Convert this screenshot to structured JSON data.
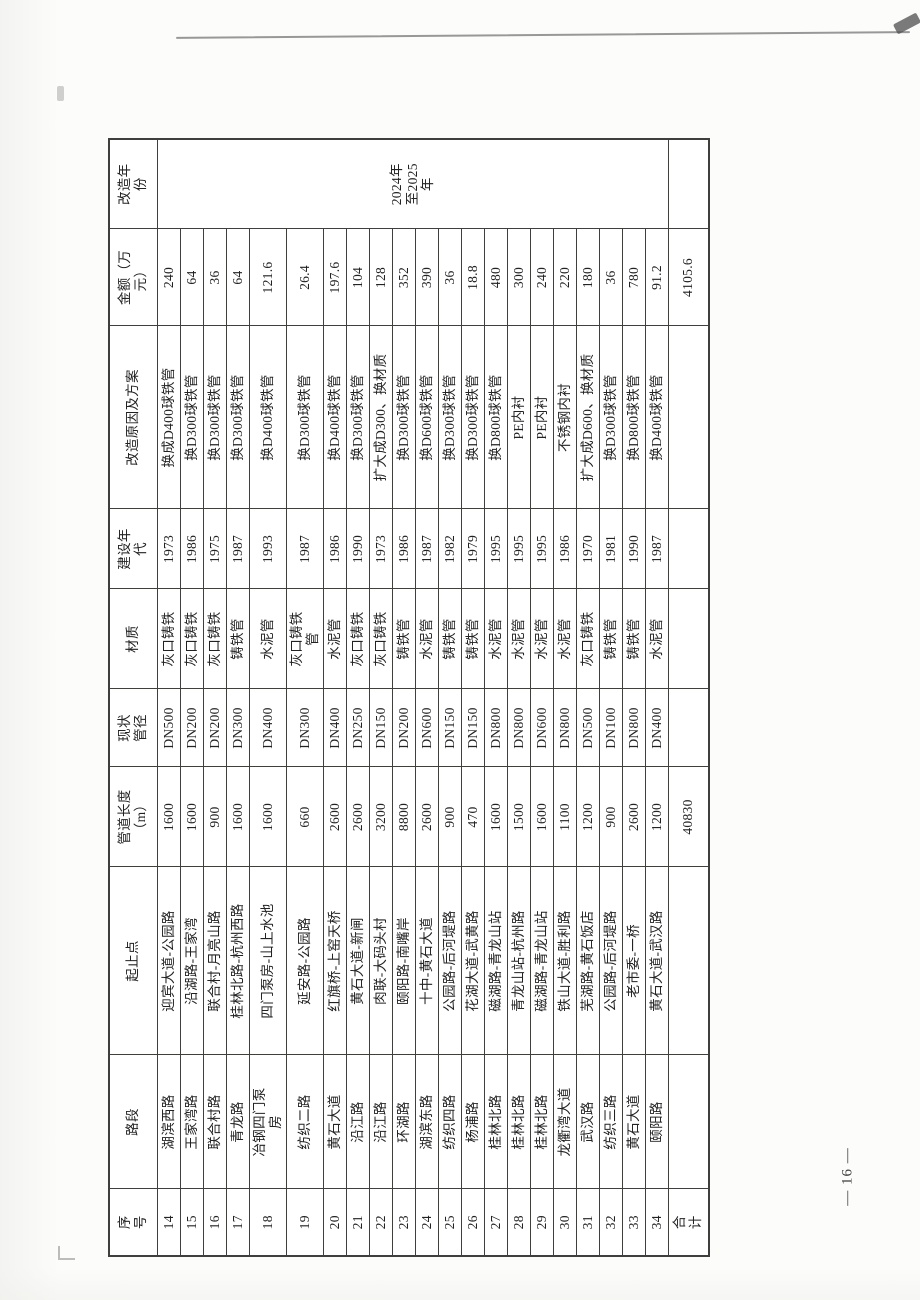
{
  "page": {
    "page_number": "— 16 —"
  },
  "table": {
    "columns": [
      {
        "key": "seq",
        "label": "序\n号"
      },
      {
        "key": "road",
        "label": "路段"
      },
      {
        "key": "section",
        "label": "起止点"
      },
      {
        "key": "length",
        "label": "管道长度\n（m）"
      },
      {
        "key": "diameter",
        "label": "现状\n管径"
      },
      {
        "key": "material",
        "label": "材质"
      },
      {
        "key": "year_built",
        "label": "建设年\n代"
      },
      {
        "key": "plan",
        "label": "改造原因及方案"
      },
      {
        "key": "amount",
        "label": "金额（万\n元）"
      },
      {
        "key": "years",
        "label": "改造年\n份"
      }
    ],
    "renovation_years": "2024年\n至2025\n年",
    "rows": [
      [
        "14",
        "湖滨西路",
        "迎宾大道-公园路",
        "1600",
        "DN500",
        "灰口铸铁",
        "1973",
        "换成D400球铁管",
        "240"
      ],
      [
        "15",
        "王家湾路",
        "沿湖路-王家湾",
        "1600",
        "DN200",
        "灰口铸铁",
        "1986",
        "换D300球铁管",
        "64"
      ],
      [
        "16",
        "联合村路",
        "联合村-月亮山路",
        "900",
        "DN200",
        "灰口铸铁",
        "1975",
        "换D300球铁管",
        "36"
      ],
      [
        "17",
        "青龙路",
        "桂林北路-杭州西路",
        "1600",
        "DN300",
        "铸铁管",
        "1987",
        "换D300球铁管",
        "64"
      ],
      [
        "18",
        "冶钢四门泵\n房",
        "四门泵房-山上水池",
        "1600",
        "DN400",
        "水泥管",
        "1993",
        "换D400球铁管",
        "121.6"
      ],
      [
        "19",
        "纺织二路",
        "延安路-公园路",
        "660",
        "DN300",
        "灰口铸铁\n管",
        "1987",
        "换D300球铁管",
        "26.4"
      ],
      [
        "20",
        "黄石大道",
        "红旗桥-上窑天桥",
        "2600",
        "DN400",
        "水泥管",
        "1986",
        "换D400球铁管",
        "197.6"
      ],
      [
        "21",
        "沿江路",
        "黄石大道-新闸",
        "2600",
        "DN250",
        "灰口铸铁",
        "1990",
        "换D300球铁管",
        "104"
      ],
      [
        "22",
        "沿江路",
        "肉联-大码头村",
        "3200",
        "DN150",
        "灰口铸铁",
        "1973",
        "扩大成D300、换材质",
        "128"
      ],
      [
        "23",
        "环湖路",
        "颐阳路-南嘴岸",
        "8800",
        "DN200",
        "铸铁管",
        "1986",
        "换D300球铁管",
        "352"
      ],
      [
        "24",
        "湖滨东路",
        "十中-黄石大道",
        "2600",
        "DN600",
        "水泥管",
        "1987",
        "换D600球铁管",
        "390"
      ],
      [
        "25",
        "纺织四路",
        "公园路-后河堤路",
        "900",
        "DN150",
        "铸铁管",
        "1982",
        "换D300球铁管",
        "36"
      ],
      [
        "26",
        "杨浦路",
        "花湖大道-武黄路",
        "470",
        "DN150",
        "铸铁管",
        "1979",
        "换D300球铁管",
        "18.8"
      ],
      [
        "27",
        "桂林北路",
        "磁湖路-青龙山站",
        "1600",
        "DN800",
        "水泥管",
        "1995",
        "换D800球铁管",
        "480"
      ],
      [
        "28",
        "桂林北路",
        "青龙山站-杭州路",
        "1500",
        "DN800",
        "水泥管",
        "1995",
        "PE内衬",
        "300"
      ],
      [
        "29",
        "桂林北路",
        "磁湖路-青龙山站",
        "1600",
        "DN600",
        "水泥管",
        "1995",
        "PE内衬",
        "240"
      ],
      [
        "30",
        "龙衢湾大道",
        "铁山大道-胜利路",
        "1100",
        "DN800",
        "水泥管",
        "1986",
        "不锈钢内衬",
        "220"
      ],
      [
        "31",
        "武汉路",
        "芜湖路-黄石饭店",
        "1200",
        "DN500",
        "灰口铸铁",
        "1970",
        "扩大成D600、换材质",
        "180"
      ],
      [
        "32",
        "纺织三路",
        "公园路-后河堤路",
        "900",
        "DN100",
        "铸铁管",
        "1981",
        "换D300球铁管",
        "36"
      ],
      [
        "33",
        "黄石大道",
        "老市委-一桥",
        "2600",
        "DN800",
        "铸铁管",
        "1990",
        "换D800球铁管",
        "780"
      ],
      [
        "34",
        "颐阳路",
        "黄石大道-武汉路",
        "1200",
        "DN400",
        "水泥管",
        "1987",
        "换D400球铁管",
        "91.2"
      ]
    ],
    "total_row": [
      "合\n计",
      "",
      "",
      "40830",
      "",
      "",
      "",
      "",
      "4105.6",
      ""
    ]
  }
}
